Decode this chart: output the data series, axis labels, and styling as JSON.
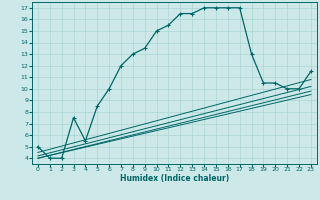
{
  "xlabel": "Humidex (Indice chaleur)",
  "bg_color": "#cce8e8",
  "grid_color": "#aad4d4",
  "line_color": "#006666",
  "xlim": [
    -0.5,
    23.5
  ],
  "ylim": [
    3.5,
    17.5
  ],
  "xticks": [
    0,
    1,
    2,
    3,
    4,
    5,
    6,
    7,
    8,
    9,
    10,
    11,
    12,
    13,
    14,
    15,
    16,
    17,
    18,
    19,
    20,
    21,
    22,
    23
  ],
  "yticks": [
    4,
    5,
    6,
    7,
    8,
    9,
    10,
    11,
    12,
    13,
    14,
    15,
    16,
    17
  ],
  "main_x": [
    0,
    1,
    2,
    3,
    4,
    5,
    6,
    7,
    8,
    9,
    10,
    11,
    12,
    13,
    14,
    15,
    16,
    17,
    18,
    19,
    20,
    21,
    22,
    23
  ],
  "main_y": [
    5.0,
    4.0,
    4.0,
    7.5,
    5.5,
    8.5,
    10.0,
    12.0,
    13.0,
    13.5,
    15.0,
    15.5,
    16.5,
    16.5,
    17.0,
    17.0,
    17.0,
    17.0,
    13.0,
    10.5,
    10.5,
    10.0,
    10.0,
    11.5
  ],
  "line2_x": [
    0,
    23
  ],
  "line2_y": [
    4.0,
    9.5
  ],
  "line3_x": [
    0,
    23
  ],
  "line3_y": [
    4.0,
    9.8
  ],
  "line4_x": [
    0,
    23
  ],
  "line4_y": [
    4.2,
    10.2
  ],
  "line5_x": [
    0,
    23
  ],
  "line5_y": [
    4.5,
    10.8
  ]
}
